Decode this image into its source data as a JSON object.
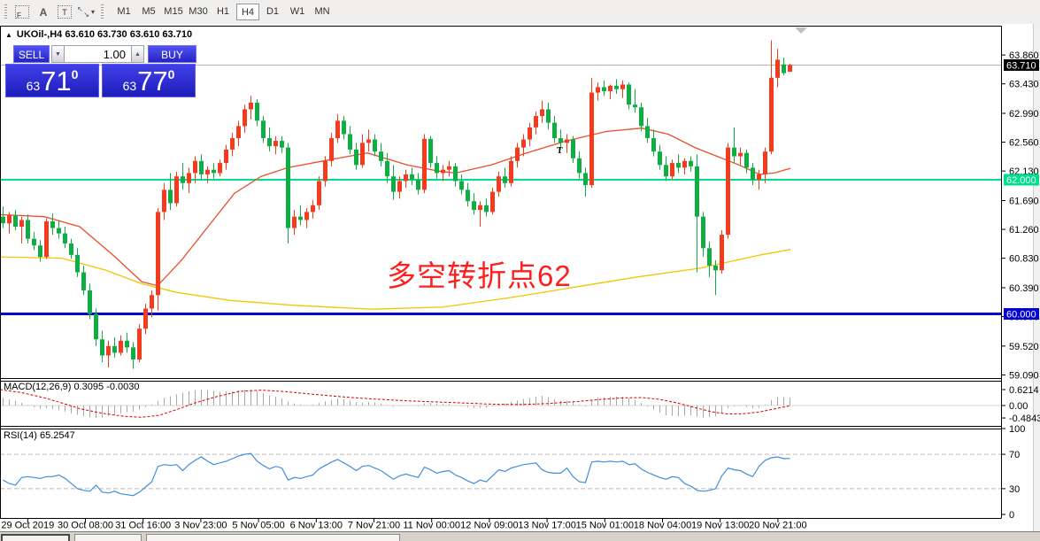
{
  "toolbar": {
    "icons": [
      {
        "name": "fibonacci-tool-icon",
        "glyph": "F"
      },
      {
        "name": "text-tool-icon",
        "glyph": "A"
      },
      {
        "name": "text-label-tool-icon",
        "glyph": "T"
      },
      {
        "name": "arrows-tool-icon",
        "glyph_a": "↖",
        "glyph_b": "↘"
      },
      {
        "name": "dropdown-caret-icon",
        "glyph": "▾"
      }
    ],
    "timeframes": [
      "M1",
      "M5",
      "M15",
      "M30",
      "H1",
      "H4",
      "D1",
      "W1",
      "MN"
    ],
    "selected_timeframe": "H4"
  },
  "chart": {
    "title": "UKOil-,H4 63.610 63.730 63.610 63.710",
    "symbol": "UKOil-",
    "period": "H4",
    "ohlc": {
      "open": "63.610",
      "high": "63.730",
      "low": "63.610",
      "close": "63.710"
    },
    "annotation": "多空转折点62",
    "t_marker": "T",
    "current_price": 63.71,
    "current_price_label": "63.710",
    "levels": [
      {
        "label": "62.000",
        "price": 62.0,
        "color": "#00e08c"
      },
      {
        "label": "60.000",
        "price": 60.0,
        "color": "#0000d2"
      }
    ],
    "price_ticks": [
      "63.860",
      "63.430",
      "62.990",
      "62.560",
      "62.130",
      "61.690",
      "61.260",
      "60.830",
      "60.390",
      "59.960",
      "59.520",
      "59.090"
    ],
    "candles": [
      [
        61.45,
        61.6,
        61.28,
        61.35
      ],
      [
        61.35,
        61.52,
        61.2,
        61.47
      ],
      [
        61.47,
        61.55,
        61.25,
        61.3
      ],
      [
        61.3,
        61.45,
        61.05,
        61.4
      ],
      [
        61.4,
        61.48,
        61.05,
        61.12
      ],
      [
        61.12,
        61.22,
        60.95,
        61.02
      ],
      [
        61.02,
        61.1,
        60.78,
        60.85
      ],
      [
        60.85,
        61.42,
        60.82,
        61.38
      ],
      [
        61.38,
        61.5,
        61.18,
        61.28
      ],
      [
        61.28,
        61.4,
        61.12,
        61.2
      ],
      [
        61.2,
        61.3,
        60.98,
        61.05
      ],
      [
        61.05,
        61.12,
        60.82,
        60.88
      ],
      [
        60.88,
        60.98,
        60.55,
        60.62
      ],
      [
        60.62,
        60.72,
        60.28,
        60.35
      ],
      [
        60.35,
        60.45,
        59.92,
        60.0
      ],
      [
        60.0,
        60.08,
        59.52,
        59.62
      ],
      [
        59.62,
        59.75,
        59.28,
        59.38
      ],
      [
        59.38,
        59.6,
        59.2,
        59.52
      ],
      [
        59.52,
        59.65,
        59.35,
        59.42
      ],
      [
        59.42,
        59.68,
        59.38,
        59.6
      ],
      [
        59.6,
        59.72,
        59.42,
        59.5
      ],
      [
        59.5,
        59.58,
        59.18,
        59.32
      ],
      [
        59.32,
        59.85,
        59.28,
        59.78
      ],
      [
        59.78,
        60.15,
        59.7,
        60.08
      ],
      [
        60.08,
        60.35,
        59.95,
        60.28
      ],
      [
        60.28,
        61.58,
        60.05,
        61.52
      ],
      [
        61.52,
        61.95,
        61.4,
        61.85
      ],
      [
        61.85,
        62.1,
        61.55,
        61.65
      ],
      [
        61.65,
        62.12,
        61.6,
        62.05
      ],
      [
        62.05,
        62.25,
        61.85,
        61.95
      ],
      [
        61.95,
        62.18,
        61.8,
        62.1
      ],
      [
        62.1,
        62.35,
        61.95,
        62.28
      ],
      [
        62.28,
        62.38,
        62.0,
        62.08
      ],
      [
        62.08,
        62.2,
        61.95,
        62.15
      ],
      [
        62.15,
        62.25,
        62.02,
        62.1
      ],
      [
        62.1,
        62.3,
        62.05,
        62.25
      ],
      [
        62.25,
        62.52,
        62.15,
        62.45
      ],
      [
        62.45,
        62.7,
        62.35,
        62.62
      ],
      [
        62.62,
        62.88,
        62.5,
        62.8
      ],
      [
        62.8,
        63.12,
        62.7,
        63.05
      ],
      [
        63.05,
        63.25,
        62.9,
        63.15
      ],
      [
        63.15,
        63.2,
        62.8,
        62.88
      ],
      [
        62.88,
        62.95,
        62.55,
        62.62
      ],
      [
        62.62,
        62.78,
        62.42,
        62.5
      ],
      [
        62.5,
        62.65,
        62.38,
        62.58
      ],
      [
        62.58,
        62.65,
        62.4,
        62.48
      ],
      [
        62.48,
        62.55,
        61.05,
        61.28
      ],
      [
        61.28,
        61.55,
        61.18,
        61.45
      ],
      [
        61.45,
        61.62,
        61.32,
        61.4
      ],
      [
        61.4,
        61.58,
        61.28,
        61.52
      ],
      [
        61.52,
        61.7,
        61.42,
        61.62
      ],
      [
        61.62,
        62.05,
        61.55,
        61.98
      ],
      [
        61.98,
        62.35,
        61.9,
        62.28
      ],
      [
        62.28,
        62.7,
        62.2,
        62.62
      ],
      [
        62.62,
        62.98,
        62.55,
        62.88
      ],
      [
        62.88,
        62.95,
        62.6,
        62.68
      ],
      [
        62.68,
        62.8,
        62.38,
        62.45
      ],
      [
        62.45,
        62.55,
        62.15,
        62.22
      ],
      [
        62.22,
        62.68,
        62.18,
        62.55
      ],
      [
        62.55,
        62.75,
        62.42,
        62.6
      ],
      [
        62.6,
        62.68,
        62.35,
        62.42
      ],
      [
        62.42,
        62.55,
        62.2,
        62.28
      ],
      [
        62.28,
        62.4,
        61.95,
        62.05
      ],
      [
        62.05,
        62.22,
        61.7,
        61.82
      ],
      [
        61.82,
        62.05,
        61.72,
        61.98
      ],
      [
        61.98,
        62.15,
        61.88,
        62.08
      ],
      [
        62.08,
        62.18,
        61.92,
        62.0
      ],
      [
        62.0,
        62.1,
        61.78,
        61.85
      ],
      [
        61.85,
        62.68,
        61.8,
        62.61
      ],
      [
        62.61,
        62.65,
        62.18,
        62.25
      ],
      [
        62.25,
        62.35,
        62.02,
        62.1
      ],
      [
        62.1,
        62.22,
        61.98,
        62.15
      ],
      [
        62.15,
        62.28,
        62.05,
        62.2
      ],
      [
        62.2,
        62.25,
        61.9,
        61.98
      ],
      [
        61.98,
        62.08,
        61.78,
        61.85
      ],
      [
        61.85,
        61.95,
        61.6,
        61.68
      ],
      [
        61.68,
        61.8,
        61.48,
        61.55
      ],
      [
        61.55,
        61.68,
        61.3,
        61.62
      ],
      [
        61.62,
        61.72,
        61.45,
        61.52
      ],
      [
        61.52,
        61.88,
        61.48,
        61.82
      ],
      [
        61.82,
        62.12,
        61.75,
        62.05
      ],
      [
        62.05,
        62.18,
        61.88,
        61.95
      ],
      [
        61.95,
        62.35,
        61.9,
        62.28
      ],
      [
        62.28,
        62.55,
        62.18,
        62.48
      ],
      [
        62.48,
        62.68,
        62.35,
        62.6
      ],
      [
        62.6,
        62.85,
        62.5,
        62.78
      ],
      [
        62.78,
        63.02,
        62.68,
        62.95
      ],
      [
        62.95,
        63.18,
        62.85,
        63.05
      ],
      [
        63.05,
        63.15,
        62.75,
        62.85
      ],
      [
        62.85,
        62.95,
        62.55,
        62.62
      ],
      [
        62.62,
        62.75,
        62.45,
        62.55
      ],
      [
        62.55,
        62.68,
        62.4,
        62.6
      ],
      [
        62.6,
        62.65,
        62.25,
        62.32
      ],
      [
        62.32,
        62.42,
        62.02,
        62.1
      ],
      [
        62.1,
        62.18,
        61.75,
        61.92
      ],
      [
        61.92,
        63.52,
        61.88,
        63.3
      ],
      [
        63.3,
        63.45,
        63.18,
        63.38
      ],
      [
        63.38,
        63.48,
        63.25,
        63.32
      ],
      [
        63.32,
        63.42,
        63.2,
        63.4
      ],
      [
        63.4,
        63.5,
        63.28,
        63.35
      ],
      [
        63.35,
        63.48,
        63.22,
        63.42
      ],
      [
        63.42,
        63.45,
        63.05,
        63.12
      ],
      [
        63.12,
        63.35,
        63.0,
        63.08
      ],
      [
        63.08,
        63.15,
        62.72,
        62.8
      ],
      [
        62.8,
        62.92,
        62.55,
        62.62
      ],
      [
        62.62,
        62.75,
        62.35,
        62.42
      ],
      [
        62.42,
        62.52,
        62.15,
        62.22
      ],
      [
        62.22,
        62.35,
        61.98,
        62.05
      ],
      [
        62.05,
        62.3,
        62.0,
        62.25
      ],
      [
        62.25,
        62.38,
        62.1,
        62.18
      ],
      [
        62.18,
        62.32,
        62.08,
        62.28
      ],
      [
        62.28,
        62.35,
        62.12,
        62.2
      ],
      [
        62.2,
        62.38,
        60.62,
        61.45
      ],
      [
        61.45,
        61.52,
        60.85,
        60.98
      ],
      [
        60.98,
        61.08,
        60.55,
        60.72
      ],
      [
        60.72,
        60.8,
        60.28,
        60.65
      ],
      [
        60.65,
        61.25,
        60.6,
        61.18
      ],
      [
        61.18,
        62.55,
        61.12,
        62.48
      ],
      [
        62.48,
        62.78,
        62.25,
        62.35
      ],
      [
        62.35,
        62.48,
        62.22,
        62.4
      ],
      [
        62.4,
        62.45,
        62.1,
        62.18
      ],
      [
        62.18,
        62.25,
        61.92,
        62.0
      ],
      [
        62.0,
        62.15,
        61.85,
        62.08
      ],
      [
        62.08,
        62.48,
        61.95,
        62.42
      ],
      [
        62.42,
        64.08,
        62.38,
        63.52
      ],
      [
        63.52,
        63.95,
        63.38,
        63.79
      ],
      [
        63.72,
        63.82,
        63.56,
        63.59
      ],
      [
        63.61,
        63.73,
        63.61,
        63.71
      ]
    ],
    "ma_fast": [
      [
        0,
        61.48
      ],
      [
        50,
        61.45
      ],
      [
        90,
        61.3
      ],
      [
        130,
        60.85
      ],
      [
        160,
        60.48
      ],
      [
        178,
        60.42
      ],
      [
        205,
        60.8
      ],
      [
        235,
        61.3
      ],
      [
        265,
        61.8
      ],
      [
        295,
        62.05
      ],
      [
        325,
        62.18
      ],
      [
        365,
        62.28
      ],
      [
        415,
        62.4
      ],
      [
        460,
        62.22
      ],
      [
        495,
        62.13
      ],
      [
        515,
        62.1
      ],
      [
        555,
        62.22
      ],
      [
        595,
        62.4
      ],
      [
        640,
        62.58
      ],
      [
        685,
        62.72
      ],
      [
        725,
        62.77
      ],
      [
        755,
        62.68
      ],
      [
        785,
        62.48
      ],
      [
        810,
        62.35
      ],
      [
        835,
        62.22
      ],
      [
        858,
        62.08
      ],
      [
        875,
        62.1
      ],
      [
        893,
        62.17
      ]
    ],
    "ma_slow": [
      [
        0,
        60.85
      ],
      [
        70,
        60.83
      ],
      [
        120,
        60.65
      ],
      [
        160,
        60.45
      ],
      [
        200,
        60.32
      ],
      [
        260,
        60.2
      ],
      [
        330,
        60.13
      ],
      [
        420,
        60.07
      ],
      [
        500,
        60.1
      ],
      [
        580,
        60.25
      ],
      [
        650,
        60.4
      ],
      [
        720,
        60.55
      ],
      [
        790,
        60.68
      ],
      [
        860,
        60.88
      ],
      [
        893,
        60.96
      ]
    ]
  },
  "trade": {
    "sell_label": "SELL",
    "buy_label": "BUY",
    "volume": "1.00",
    "bid": {
      "small": "63",
      "big": "71",
      "sup": "0"
    },
    "ask": {
      "small": "63",
      "big": "77",
      "sup": "0"
    }
  },
  "macd": {
    "label": "MACD(12,26,9) 0.3095 -0.0030",
    "axis_labels": [
      "0.6214",
      "0.00",
      "-0.4843"
    ],
    "axis_values": [
      0.6214,
      0,
      -0.4843
    ],
    "histogram": [
      0.3,
      0.24,
      0.18,
      0.1,
      0.02,
      -0.06,
      -0.12,
      -0.1,
      -0.14,
      -0.18,
      -0.24,
      -0.3,
      -0.36,
      -0.42,
      -0.46,
      -0.48,
      -0.46,
      -0.4,
      -0.36,
      -0.3,
      -0.26,
      -0.24,
      -0.16,
      -0.06,
      0.04,
      0.18,
      0.3,
      0.36,
      0.44,
      0.5,
      0.55,
      0.6,
      0.62,
      0.6,
      0.56,
      0.54,
      0.55,
      0.56,
      0.58,
      0.6,
      0.61,
      0.55,
      0.48,
      0.4,
      0.34,
      0.28,
      0.15,
      0.08,
      0.04,
      0.02,
      0.04,
      0.1,
      0.16,
      0.22,
      0.28,
      0.26,
      0.2,
      0.12,
      0.12,
      0.14,
      0.12,
      0.08,
      0.02,
      -0.04,
      -0.02,
      0.0,
      0.0,
      -0.02,
      0.08,
      0.1,
      0.08,
      0.06,
      0.06,
      0.02,
      -0.02,
      -0.06,
      -0.1,
      -0.08,
      -0.08,
      -0.02,
      0.06,
      0.08,
      0.14,
      0.2,
      0.26,
      0.3,
      0.34,
      0.38,
      0.32,
      0.26,
      0.2,
      0.18,
      0.12,
      0.04,
      -0.04,
      0.22,
      0.3,
      0.32,
      0.34,
      0.35,
      0.34,
      0.28,
      0.22,
      0.1,
      -0.04,
      -0.16,
      -0.28,
      -0.38,
      -0.4,
      -0.42,
      -0.4,
      -0.38,
      -0.44,
      -0.46,
      -0.45,
      -0.42,
      -0.3,
      -0.1,
      -0.04,
      -0.02,
      -0.06,
      -0.1,
      -0.08,
      0.02,
      0.22,
      0.32,
      0.32,
      0.31
    ],
    "signal": [
      [
        0,
        0.62
      ],
      [
        25,
        0.5
      ],
      [
        50,
        0.3
      ],
      [
        70,
        0.1
      ],
      [
        90,
        -0.12
      ],
      [
        115,
        -0.3
      ],
      [
        140,
        -0.42
      ],
      [
        160,
        -0.46
      ],
      [
        180,
        -0.38
      ],
      [
        200,
        -0.15
      ],
      [
        220,
        0.1
      ],
      [
        245,
        0.35
      ],
      [
        270,
        0.55
      ],
      [
        295,
        0.6
      ],
      [
        320,
        0.55
      ],
      [
        350,
        0.45
      ],
      [
        380,
        0.36
      ],
      [
        410,
        0.28
      ],
      [
        440,
        0.22
      ],
      [
        470,
        0.17
      ],
      [
        500,
        0.13
      ],
      [
        530,
        0.09
      ],
      [
        560,
        0.05
      ],
      [
        590,
        0.04
      ],
      [
        620,
        0.08
      ],
      [
        650,
        0.15
      ],
      [
        680,
        0.24
      ],
      [
        705,
        0.3
      ],
      [
        725,
        0.31
      ],
      [
        745,
        0.24
      ],
      [
        765,
        0.1
      ],
      [
        785,
        -0.08
      ],
      [
        805,
        -0.25
      ],
      [
        822,
        -0.33
      ],
      [
        840,
        -0.32
      ],
      [
        858,
        -0.25
      ],
      [
        872,
        -0.15
      ],
      [
        885,
        -0.06
      ],
      [
        893,
        -0.01
      ]
    ]
  },
  "rsi": {
    "label": "RSI(14) 65.2547",
    "axis_labels": [
      "100",
      "70",
      "30",
      "0"
    ],
    "axis_values": [
      100,
      70,
      30,
      0
    ],
    "overbought": 70,
    "oversold": 30,
    "values": [
      40,
      36,
      34,
      43,
      44,
      43,
      42,
      44,
      44,
      46,
      42,
      36,
      30,
      28,
      27,
      34,
      26,
      25,
      27,
      24,
      23,
      22,
      26,
      32,
      38,
      56,
      58,
      57,
      58,
      51,
      58,
      63,
      67,
      62,
      58,
      60,
      62,
      65,
      68,
      70,
      71,
      62,
      57,
      53,
      56,
      54,
      40,
      43,
      42,
      44,
      46,
      53,
      57,
      61,
      64,
      60,
      56,
      51,
      56,
      57,
      54,
      51,
      46,
      41,
      45,
      47,
      45,
      43,
      55,
      52,
      48,
      50,
      51,
      46,
      43,
      39,
      36,
      40,
      38,
      45,
      52,
      50,
      54,
      56,
      58,
      59,
      60,
      52,
      49,
      48,
      48,
      54,
      44,
      38,
      37,
      61,
      62,
      61,
      62,
      61,
      62,
      58,
      59,
      53,
      49,
      46,
      43,
      41,
      44,
      43,
      36,
      33,
      28,
      27,
      28,
      30,
      45,
      54,
      52,
      51,
      47,
      44,
      56,
      63,
      66,
      67,
      65,
      65.25
    ]
  },
  "date_axis": [
    "29 Oct 2019",
    "30 Oct 08:00",
    "31 Oct 16:00",
    "3 Nov 23:00",
    "5 Nov 05:00",
    "6 Nov 13:00",
    "7 Nov 21:00",
    "11 Nov 00:00",
    "12 Nov 09:00",
    "13 Nov 17:00",
    "15 Nov 01:00",
    "18 Nov 04:00",
    "19 Nov 13:00",
    "20 Nov 21:00"
  ],
  "colors": {
    "up": "#f53b1e",
    "down": "#0fae44",
    "ma_fast": "#e8502d",
    "ma_slow": "#f2c500",
    "level_62": "#00e08c",
    "level_60": "#0000d2",
    "current_line": "#b0b0b0",
    "macd_signal": "#dd0000",
    "macd_hist": "#a8a8a8",
    "rsi_line": "#3f8fdb",
    "annotation": "#ff1e1e"
  }
}
